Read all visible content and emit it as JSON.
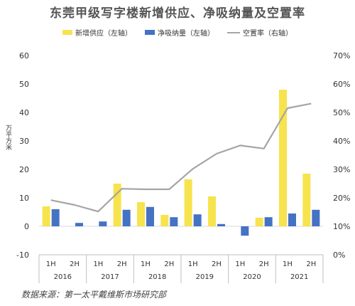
{
  "title": "东莞甲级写字楼新增供应、净吸纳量及空置率",
  "source": "数据来源：第一太平戴维斯市场研究部",
  "y_left_unit": "万平方米",
  "colors": {
    "supply": "#F7E34D",
    "absorption": "#4472C4",
    "vacancy": "#A5A5A5"
  },
  "chart_data": {
    "type": "bar",
    "categories": [
      "1H",
      "2H",
      "1H",
      "2H",
      "1H",
      "2H",
      "1H",
      "2H",
      "1H",
      "2H",
      "1H",
      "2H"
    ],
    "years": [
      "2016",
      "2017",
      "2018",
      "2019",
      "2020",
      "2021"
    ],
    "series": [
      {
        "name": "新增供应（左轴）",
        "type": "bar",
        "axis": "left",
        "values": [
          7,
          0,
          0,
          15,
          8.5,
          4,
          16.5,
          10.5,
          0,
          3,
          48,
          18.5
        ]
      },
      {
        "name": "净吸纳量（左轴）",
        "type": "bar",
        "axis": "left",
        "values": [
          6,
          1.2,
          1.7,
          5.8,
          6.8,
          3.2,
          4.2,
          0.8,
          -3.3,
          3.2,
          4.5,
          5.8
        ]
      },
      {
        "name": "空置率（右轴）",
        "type": "line",
        "axis": "right",
        "values": [
          19.2,
          17.5,
          15.2,
          23.2,
          23,
          23,
          30.2,
          35.5,
          38.4,
          37.3,
          51.5,
          53.1
        ]
      }
    ],
    "ylim_left": [
      -10,
      60
    ],
    "yticks_left": [
      "-10",
      "0",
      "10",
      "20",
      "30",
      "40",
      "50",
      "60"
    ],
    "ylim_right": [
      0,
      70
    ],
    "yticks_right": [
      "0%",
      "10%",
      "20%",
      "30%",
      "40%",
      "50%",
      "60%",
      "70%"
    ],
    "legend_position": "top-center",
    "grid": false
  }
}
